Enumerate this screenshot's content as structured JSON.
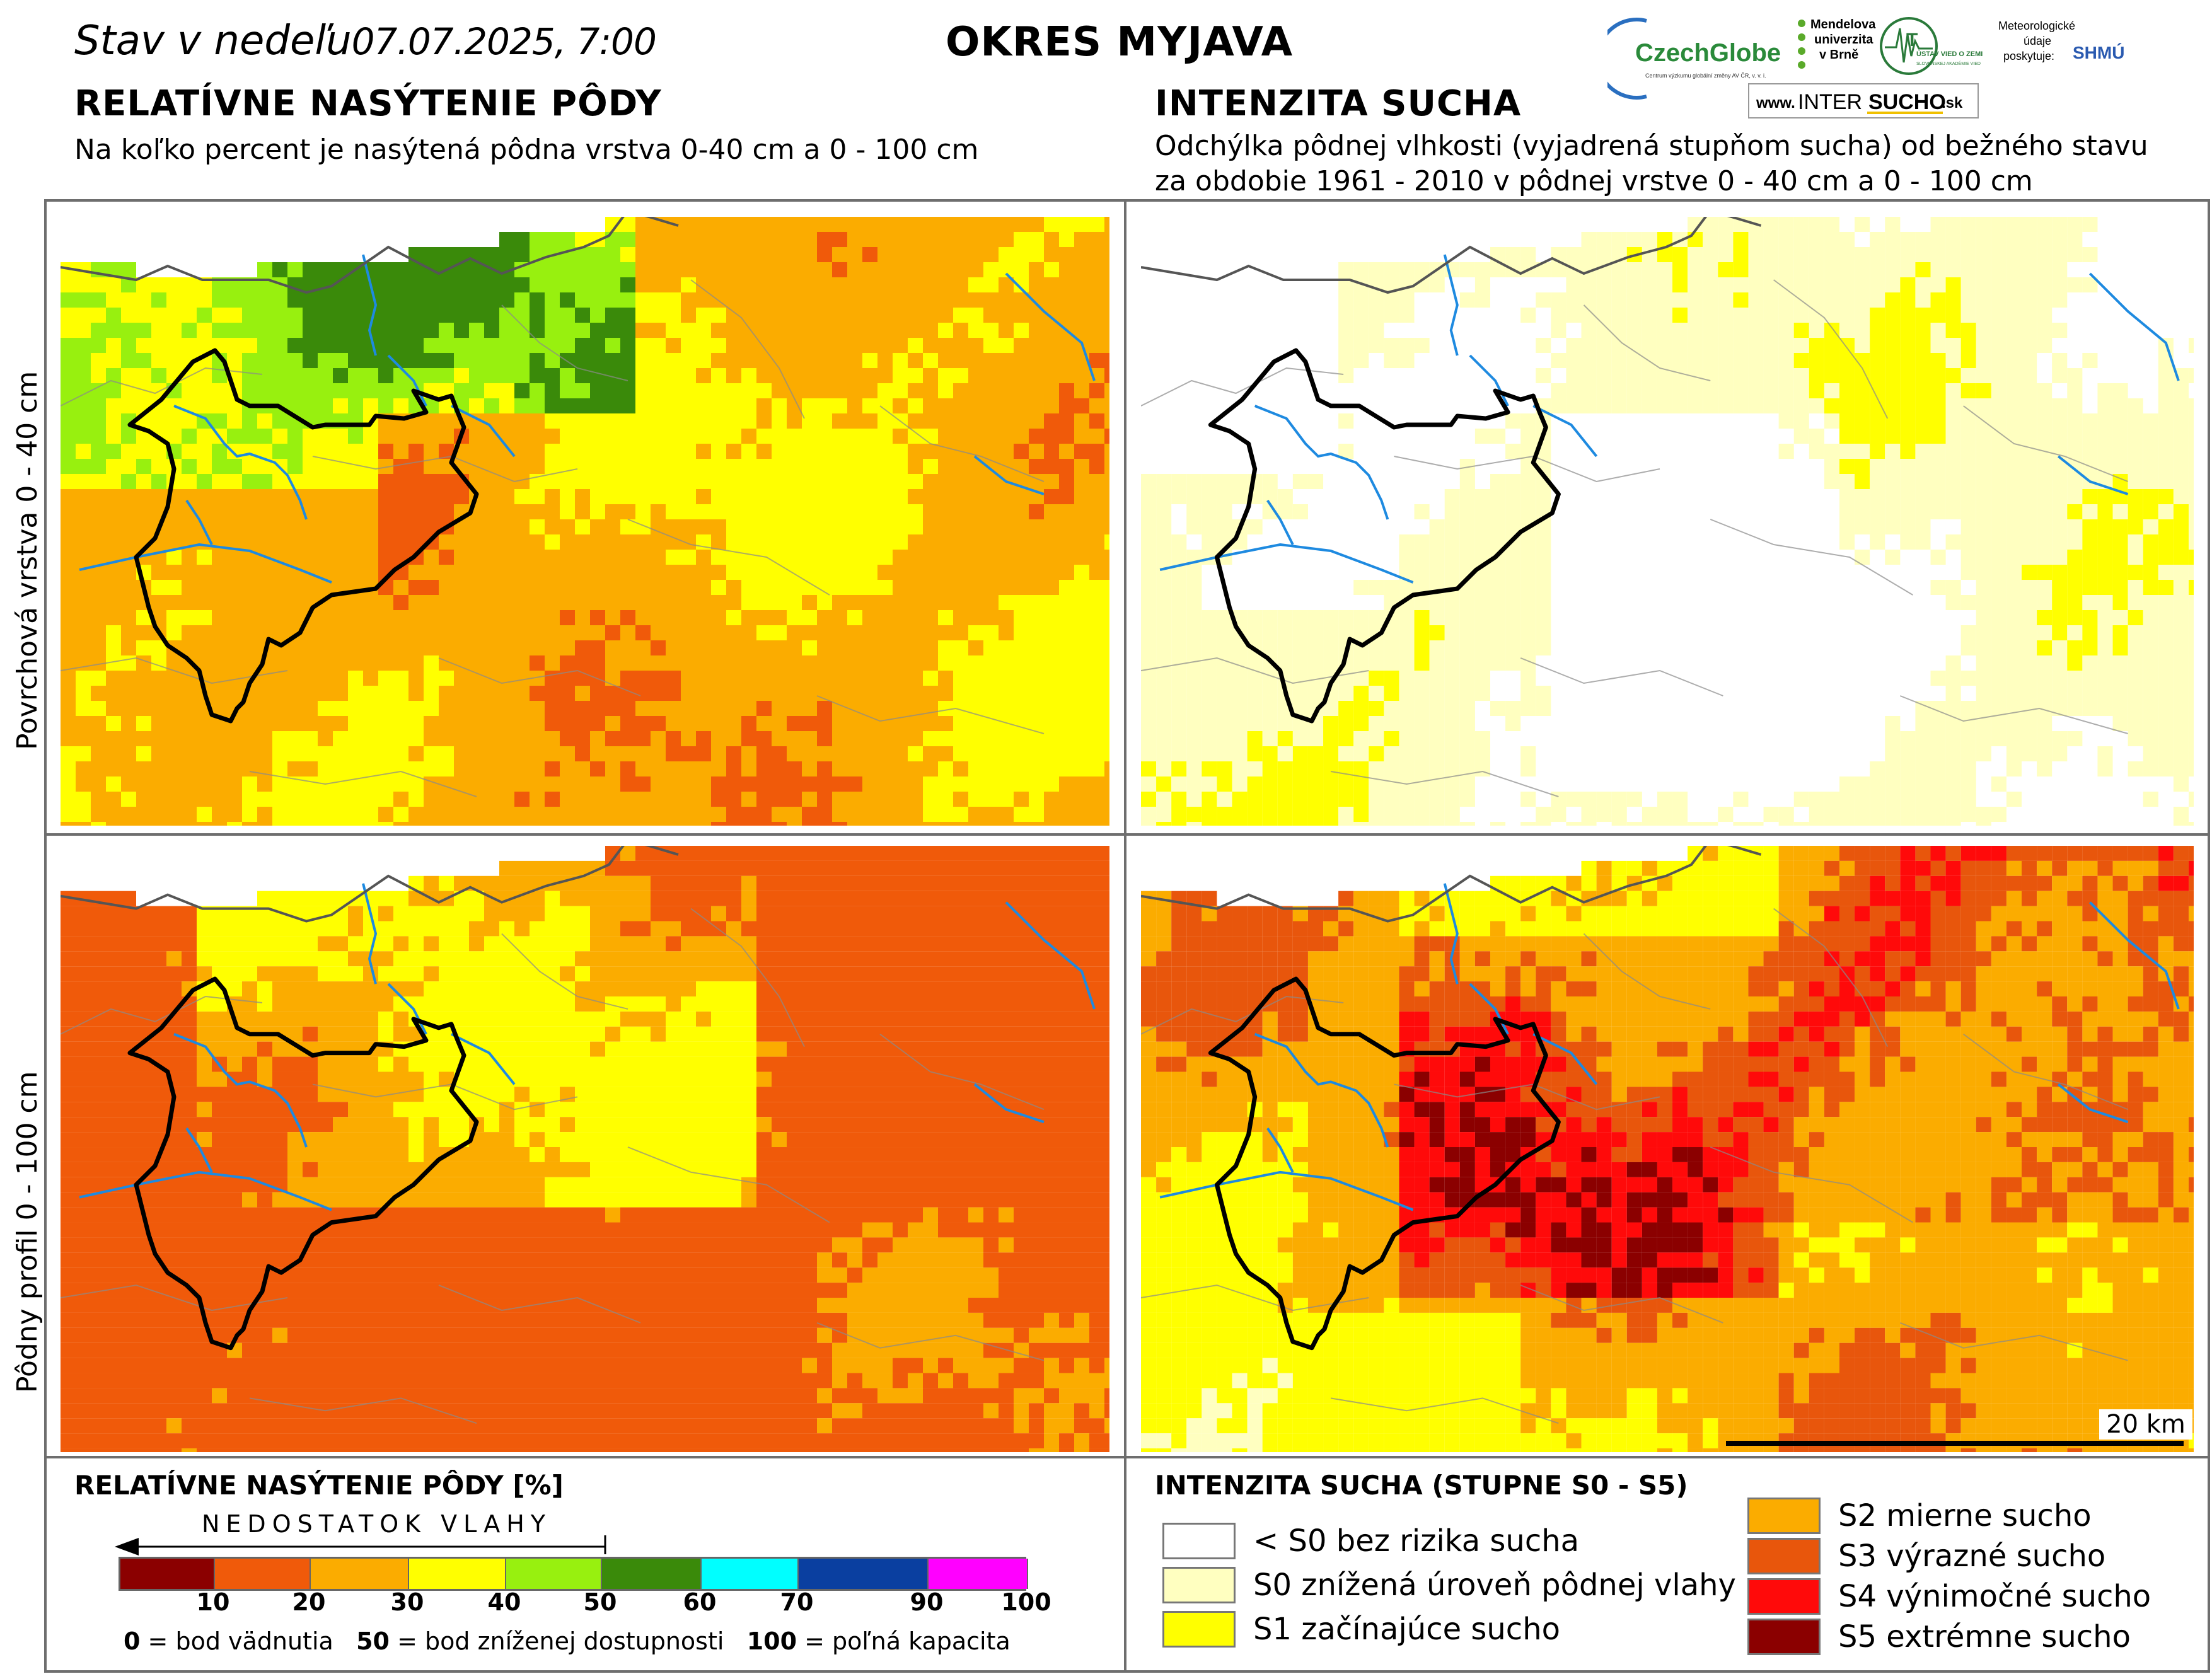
{
  "header": {
    "date_prefix": "Stav v nedeľu",
    "date_value": "07.07.2025, 7:00",
    "district": "OKRES  MYJAVA",
    "left_title": "RELATÍVNE NASÝTENIE PÔDY",
    "left_subtitle": "Na koľko percent je nasýtená pôdna vrstva 0-40 cm a 0 - 100 cm",
    "right_title": "INTENZITA SUCHA",
    "right_subtitle_1": "Odchýlka pôdnej vlhkosti (vyjadrená stupňom sucha) od bežného stavu",
    "right_subtitle_2": "za obdobie 1961 - 2010 v pôdnej vrstve 0 - 40 cm a 0 - 100 cm"
  },
  "logos": {
    "czechglobe": "CzechGlobe",
    "czechglobe_sub": "Centrum výzkumu globální změny AV ČR, v. v. i.",
    "mendel_1": "Mendelova",
    "mendel_2": "univerzita",
    "mendel_3": "v Brně",
    "ustav": "ÚSTAV VIED O ZEMI",
    "ustav_sub": "SLOVENSKEJ AKADÉMIE VIED",
    "meteo_1": "Meteorologické",
    "meteo_2": "údaje",
    "meteo_3": "poskytuje:",
    "shmu": "SHMÚ",
    "web_prefix": "www.",
    "web_mid1": "INTER",
    "web_mid2": "SUCHO",
    "web_suffix": ".sk"
  },
  "rows": {
    "top_label": "Povrchová vrstva 0 - 40 cm",
    "bottom_label": "Pôdny profil 0 - 100 cm"
  },
  "scale_bar": "20 km",
  "legend_left": {
    "title": "RELATÍVNE NASÝTENIE PÔDY [%]",
    "arrow_label": "NEDOSTATOK VLAHY",
    "colors": [
      "#8b0000",
      "#f05a0a",
      "#fbac00",
      "#ffff00",
      "#98f00f",
      "#3a8a0a",
      "#00ffff",
      "#0a3fa0",
      "#ff00ff"
    ],
    "ticks": [
      "10",
      "20",
      "30",
      "40",
      "50",
      "60",
      "70",
      "90",
      "100"
    ],
    "note_0_num": "0",
    "note_0_text": "= bod vädnutia",
    "note_50_num": "50",
    "note_50_text": "= bod zníženej dostupnosti",
    "note_100_num": "100",
    "note_100_text": "= poľná kapacita"
  },
  "legend_right": {
    "title": "INTENZITA SUCHA (STUPNE S0 - S5)",
    "items": [
      {
        "label": "< S0 bez rizika sucha",
        "color": "#ffffff"
      },
      {
        "label": "S0 znížená úroveň pôdnej vlahy",
        "color": "#ffffc0"
      },
      {
        "label": "S1 začínajúce sucho",
        "color": "#ffff00"
      },
      {
        "label": "S2 mierne sucho",
        "color": "#fbac00"
      },
      {
        "label": "S3 výrazné sucho",
        "color": "#e8560c"
      },
      {
        "label": "S4 výnimočné sucho",
        "color": "#ff0a0a"
      },
      {
        "label": "S5 extrémne sucho",
        "color": "#8b0000"
      }
    ]
  }
}
